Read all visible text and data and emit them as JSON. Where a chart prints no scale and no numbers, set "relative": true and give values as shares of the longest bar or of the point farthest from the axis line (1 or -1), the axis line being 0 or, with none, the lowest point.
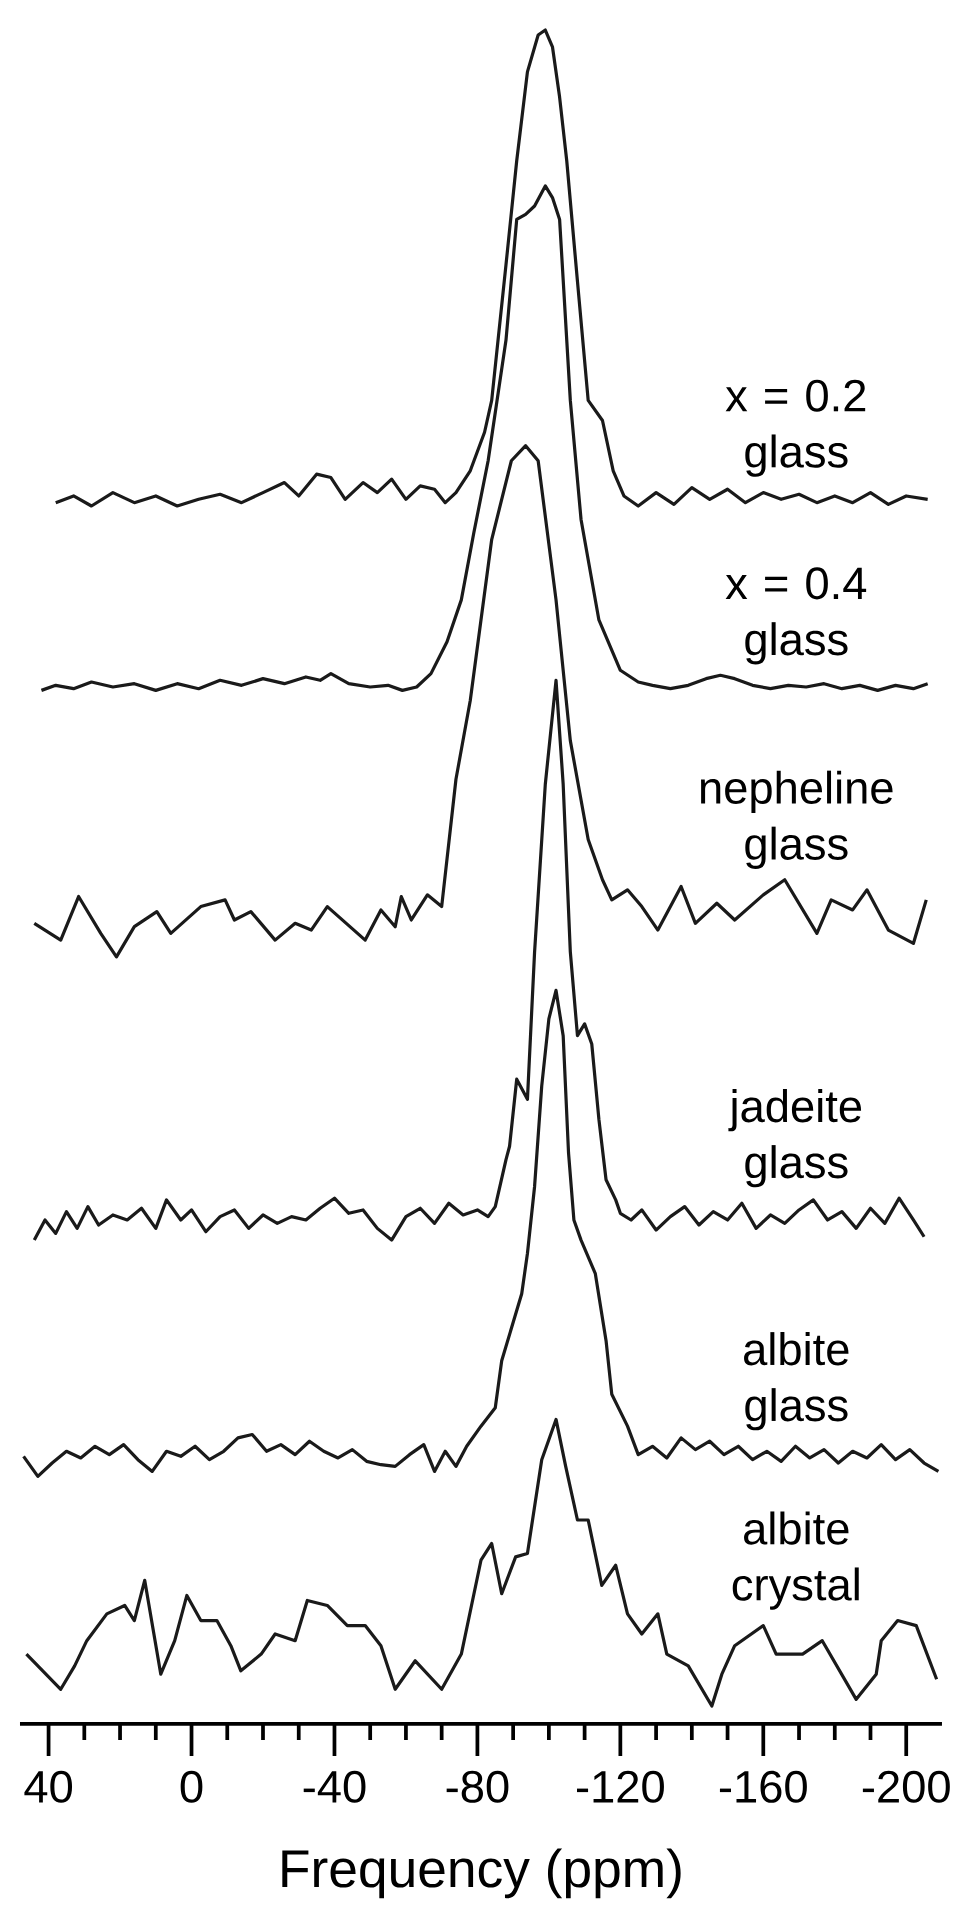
{
  "chart_data": {
    "type": "line",
    "relative": true,
    "xlabel": "Frequency (ppm)",
    "xlim": [
      48,
      -210
    ],
    "xticks": [
      40,
      {
        "value": 30,
        "label": null
      },
      {
        "value": 20,
        "label": null
      },
      {
        "value": 10,
        "label": null
      },
      0,
      {
        "value": -10,
        "label": null
      },
      {
        "value": -20,
        "label": null
      },
      {
        "value": -30,
        "label": null
      },
      -40,
      {
        "value": -50,
        "label": null
      },
      {
        "value": -60,
        "label": null
      },
      {
        "value": -70,
        "label": null
      },
      -80,
      {
        "value": -90,
        "label": null
      },
      {
        "value": -100,
        "label": null
      },
      {
        "value": -110,
        "label": null
      },
      -120,
      {
        "value": -130,
        "label": null
      },
      {
        "value": -140,
        "label": null
      },
      {
        "value": -150,
        "label": null
      },
      -160,
      {
        "value": -170,
        "label": null
      },
      {
        "value": -180,
        "label": null
      },
      {
        "value": -190,
        "label": null
      },
      -200
    ],
    "series": [
      {
        "name": "x = 0.2 glass",
        "color": "#1a1a1a",
        "x": [
          38,
          33,
          28,
          22,
          16,
          10,
          4,
          -2,
          -8,
          -14,
          -20,
          -26,
          -30,
          -35,
          -39,
          -43,
          -48,
          -52,
          -56,
          -60,
          -64,
          -68,
          -71,
          -74,
          -78,
          -82,
          -84,
          -88,
          -91,
          -94,
          -97,
          -99,
          -101,
          -103,
          -105,
          -108,
          -111,
          -115,
          -118,
          -121,
          -125,
          -130,
          -135,
          -140,
          -145,
          -150,
          -155,
          -160,
          -165,
          -170,
          -175,
          -180,
          -185,
          -190,
          -195,
          -200,
          -206
        ],
        "values": [
          0.718,
          0.722,
          0.716,
          0.724,
          0.718,
          0.722,
          0.716,
          0.72,
          0.723,
          0.718,
          0.724,
          0.73,
          0.722,
          0.735,
          0.733,
          0.72,
          0.73,
          0.724,
          0.732,
          0.72,
          0.728,
          0.726,
          0.718,
          0.724,
          0.737,
          0.76,
          0.779,
          0.86,
          0.922,
          0.975,
          0.997,
          1.0,
          0.99,
          0.96,
          0.922,
          0.85,
          0.779,
          0.767,
          0.737,
          0.722,
          0.716,
          0.724,
          0.717,
          0.727,
          0.72,
          0.726,
          0.718,
          0.724,
          0.72,
          0.723,
          0.718,
          0.722,
          0.718,
          0.724,
          0.717,
          0.722,
          0.72
        ]
      },
      {
        "name": "x = 0.4 glass",
        "color": "#1a1a1a",
        "x": [
          42,
          38,
          33,
          28,
          22,
          16,
          10,
          4,
          -2,
          -8,
          -14,
          -20,
          -26,
          -32,
          -36,
          -39,
          -44,
          -50,
          -55,
          -59,
          -63,
          -67,
          -71.5,
          -75.5,
          -79,
          -83,
          -88,
          -91,
          -93.5,
          -96,
          -99,
          -101,
          -103,
          -106,
          -109,
          -114,
          -120,
          -125,
          -129,
          -134,
          -139,
          -144,
          -148,
          -152,
          -157,
          -162,
          -167,
          -172,
          -177,
          -182,
          -187,
          -192,
          -197,
          -202,
          -206
        ],
        "values": [
          0.606,
          0.609,
          0.607,
          0.611,
          0.608,
          0.61,
          0.606,
          0.61,
          0.607,
          0.612,
          0.609,
          0.613,
          0.61,
          0.614,
          0.612,
          0.616,
          0.61,
          0.608,
          0.609,
          0.606,
          0.608,
          0.616,
          0.635,
          0.66,
          0.7,
          0.743,
          0.815,
          0.887,
          0.89,
          0.895,
          0.907,
          0.9,
          0.887,
          0.779,
          0.708,
          0.648,
          0.618,
          0.611,
          0.609,
          0.607,
          0.609,
          0.613,
          0.615,
          0.613,
          0.609,
          0.607,
          0.609,
          0.608,
          0.61,
          0.607,
          0.609,
          0.606,
          0.609,
          0.607,
          0.61
        ]
      },
      {
        "name": "nepheline glass",
        "color": "#1a1a1a",
        "x": [
          44,
          36.6,
          31.6,
          25.4,
          21,
          16,
          9.7,
          5.8,
          -2.6,
          -9.4,
          -12,
          -16.6,
          -23.4,
          -29,
          -33.5,
          -38,
          -48.6,
          -53,
          -57,
          -58.7,
          -61.5,
          -66,
          -70,
          -74,
          -78,
          -84,
          -89.5,
          -93.5,
          -97,
          -102,
          -106,
          -111,
          -115,
          -117.6,
          -122,
          -126,
          -130.5,
          -137,
          -141,
          -147,
          -152,
          -160,
          -166,
          -175,
          -179,
          -185,
          -189,
          -195,
          -202,
          -205.6
        ],
        "values": [
          0.467,
          0.457,
          0.483,
          0.461,
          0.447,
          0.465,
          0.474,
          0.461,
          0.477,
          0.481,
          0.469,
          0.474,
          0.457,
          0.467,
          0.463,
          0.477,
          0.457,
          0.475,
          0.465,
          0.483,
          0.469,
          0.484,
          0.477,
          0.553,
          0.6,
          0.696,
          0.743,
          0.752,
          0.743,
          0.66,
          0.576,
          0.517,
          0.493,
          0.481,
          0.487,
          0.477,
          0.463,
          0.489,
          0.467,
          0.479,
          0.469,
          0.484,
          0.493,
          0.461,
          0.481,
          0.475,
          0.487,
          0.463,
          0.455,
          0.481
        ]
      },
      {
        "name": "jadeite glass",
        "color": "#1a1a1a",
        "x": [
          44,
          41,
          38,
          35,
          32,
          29,
          26,
          22,
          18,
          14,
          10,
          7,
          3,
          0,
          -4,
          -8,
          -12,
          -16,
          -20,
          -24,
          -28,
          -32,
          -36,
          -40,
          -44,
          -48,
          -52,
          -56,
          -60,
          -64,
          -68,
          -72,
          -76,
          -80,
          -83,
          -85,
          -88,
          -89,
          -91,
          -94,
          -96,
          -99,
          -102,
          -104,
          -106,
          -108,
          -110,
          -112,
          -114,
          -116,
          -118.7,
          -120,
          -123,
          -126,
          -130,
          -134,
          -138,
          -142,
          -146,
          -150,
          -154,
          -158,
          -162,
          -166,
          -170,
          -174,
          -178,
          -182,
          -186,
          -190,
          -194,
          -198,
          -202,
          -205
        ],
        "values": [
          0.278,
          0.29,
          0.282,
          0.295,
          0.285,
          0.298,
          0.287,
          0.293,
          0.29,
          0.297,
          0.285,
          0.302,
          0.29,
          0.296,
          0.283,
          0.292,
          0.296,
          0.285,
          0.293,
          0.288,
          0.292,
          0.29,
          0.297,
          0.303,
          0.294,
          0.296,
          0.285,
          0.278,
          0.292,
          0.297,
          0.288,
          0.3,
          0.293,
          0.296,
          0.292,
          0.298,
          0.326,
          0.334,
          0.374,
          0.362,
          0.45,
          0.55,
          0.612,
          0.55,
          0.45,
          0.4,
          0.407,
          0.395,
          0.35,
          0.314,
          0.302,
          0.294,
          0.29,
          0.296,
          0.284,
          0.292,
          0.298,
          0.287,
          0.295,
          0.29,
          0.3,
          0.285,
          0.293,
          0.288,
          0.296,
          0.302,
          0.29,
          0.295,
          0.285,
          0.297,
          0.288,
          0.303,
          0.29,
          0.28
        ]
      },
      {
        "name": "albite glass",
        "color": "#1a1a1a",
        "x": [
          47,
          43,
          39,
          35,
          31,
          27,
          23,
          19,
          15,
          11,
          7,
          3,
          -1,
          -5,
          -9,
          -13,
          -17,
          -21,
          -25,
          -29,
          -33,
          -37,
          -41,
          -45,
          -49,
          -53,
          -57,
          -61,
          -65,
          -68,
          -71,
          -74,
          -77,
          -81,
          -85,
          -86.8,
          -92.4,
          -94,
          -96,
          -98,
          -100,
          -102,
          -104,
          -105.5,
          -107,
          -109,
          -113,
          -116,
          -117.6,
          -122,
          -125,
          -129,
          -133,
          -137,
          -141,
          -145,
          -149,
          -153,
          -157,
          -161,
          -165,
          -169,
          -173,
          -177,
          -181,
          -185,
          -189,
          -193,
          -197,
          -201,
          -205,
          -209
        ],
        "values": [
          0.149,
          0.137,
          0.145,
          0.152,
          0.148,
          0.155,
          0.15,
          0.156,
          0.147,
          0.14,
          0.152,
          0.149,
          0.155,
          0.147,
          0.152,
          0.16,
          0.162,
          0.152,
          0.156,
          0.15,
          0.158,
          0.152,
          0.148,
          0.153,
          0.146,
          0.144,
          0.143,
          0.15,
          0.156,
          0.14,
          0.152,
          0.143,
          0.155,
          0.167,
          0.178,
          0.206,
          0.246,
          0.27,
          0.31,
          0.37,
          0.41,
          0.427,
          0.4,
          0.33,
          0.29,
          0.278,
          0.258,
          0.218,
          0.186,
          0.167,
          0.15,
          0.155,
          0.148,
          0.16,
          0.153,
          0.158,
          0.15,
          0.155,
          0.147,
          0.152,
          0.146,
          0.155,
          0.148,
          0.153,
          0.145,
          0.152,
          0.148,
          0.156,
          0.147,
          0.153,
          0.145,
          0.14
        ]
      },
      {
        "name": "albite crystal",
        "color": "#1a1a1a",
        "x": [
          46.2,
          36.6,
          32.7,
          29.3,
          23.7,
          18.7,
          16,
          13.1,
          8.6,
          4.7,
          1.3,
          -2.6,
          -7.1,
          -11,
          -13.8,
          -19.5,
          -23.4,
          -29,
          -32.4,
          -38,
          -43.6,
          -48.6,
          -53,
          -57,
          -62.6,
          -70,
          -75.5,
          -81,
          -84,
          -86.8,
          -90.7,
          -94,
          -98,
          -102,
          -104.7,
          -108,
          -111,
          -114.8,
          -118.7,
          -122,
          -126,
          -130.5,
          -133,
          -139,
          -145.6,
          -148.4,
          -152,
          -160,
          -163.6,
          -171,
          -176.5,
          -186,
          -191.6,
          -193,
          -197.6,
          -202.8,
          -208.5
        ],
        "values": [
          0.031,
          0.01,
          0.024,
          0.039,
          0.055,
          0.06,
          0.051,
          0.075,
          0.019,
          0.039,
          0.066,
          0.051,
          0.051,
          0.036,
          0.021,
          0.031,
          0.043,
          0.039,
          0.063,
          0.06,
          0.048,
          0.048,
          0.036,
          0.01,
          0.027,
          0.01,
          0.031,
          0.087,
          0.097,
          0.067,
          0.089,
          0.091,
          0.147,
          0.171,
          0.143,
          0.111,
          0.111,
          0.072,
          0.084,
          0.055,
          0.043,
          0.055,
          0.031,
          0.024,
          0.0,
          0.019,
          0.036,
          0.048,
          0.031,
          0.031,
          0.039,
          0.004,
          0.019,
          0.039,
          0.051,
          0.048,
          0.016
        ]
      }
    ]
  }
}
